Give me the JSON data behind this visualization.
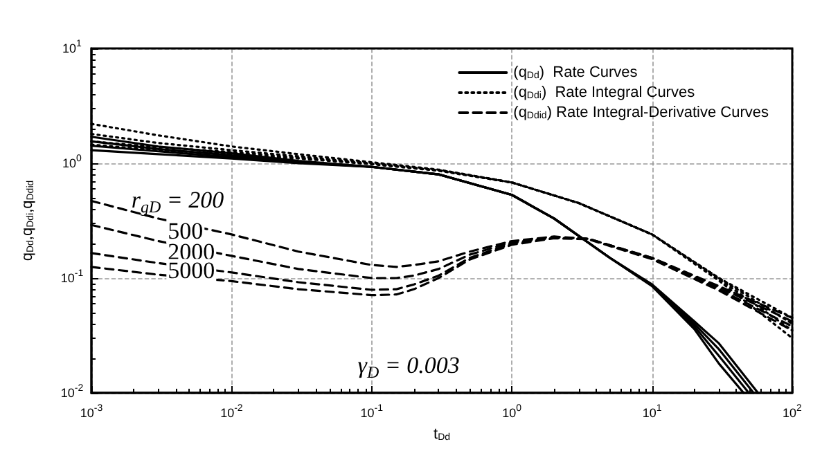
{
  "chart_data": {
    "type": "line",
    "xlabel": "t$_{Dd}$",
    "ylabel": "q$_{Dd}$,q$_{Ddi}$,q$_{Ddid}$",
    "log": "xy",
    "xlim": [
      0.001,
      100
    ],
    "ylim": [
      0.01,
      10
    ],
    "xticks": [
      {
        "value": 0.001,
        "label": "10$^{-3}$"
      },
      {
        "value": 0.01,
        "label": "10$^{-2}$"
      },
      {
        "value": 0.1,
        "label": "10$^{-1}$"
      },
      {
        "value": 1,
        "label": "10$^{0}$"
      },
      {
        "value": 10,
        "label": "10$^{1}$"
      },
      {
        "value": 100,
        "label": "10$^{2}$"
      }
    ],
    "yticks": [
      {
        "value": 0.01,
        "label": "10$^{-2}$"
      },
      {
        "value": 0.1,
        "label": "10$^{-1}$"
      },
      {
        "value": 1,
        "label": "10$^{0}$"
      },
      {
        "value": 10,
        "label": "10$^{1}$"
      }
    ],
    "grid": true,
    "legend": "top right",
    "marker": "none",
    "annotations": [
      "r$_{gD}$ = 200",
      "500",
      "2000",
      "5000",
      "γ$_{D}$ = 0.003"
    ],
    "series": [
      {
        "name": "(q$_{Dd}$)  Rate Curves",
        "color": "#000000",
        "line_style": "solid",
        "x": [
          0.001,
          0.003,
          0.01,
          0.03,
          0.1,
          0.3,
          1,
          2,
          5,
          10,
          20,
          30,
          45
        ],
        "values": [
          1.7,
          1.4,
          1.22,
          1.05,
          0.93,
          0.8,
          0.53,
          0.33,
          0.15,
          0.085,
          0.036,
          0.018,
          0.01
        ]
      },
      {
        "color": "#000000",
        "line_style": "solid",
        "x": [
          0.001,
          0.003,
          0.01,
          0.03,
          0.1,
          0.3,
          1,
          2,
          5,
          10,
          20,
          30,
          49
        ],
        "values": [
          1.55,
          1.33,
          1.17,
          1.03,
          0.93,
          0.8,
          0.53,
          0.33,
          0.15,
          0.086,
          0.038,
          0.021,
          0.01
        ]
      },
      {
        "color": "#000000",
        "line_style": "solid",
        "x": [
          0.001,
          0.003,
          0.01,
          0.03,
          0.1,
          0.3,
          1,
          2,
          5,
          10,
          20,
          30,
          53
        ],
        "values": [
          1.42,
          1.27,
          1.13,
          1.02,
          0.93,
          0.8,
          0.53,
          0.33,
          0.15,
          0.087,
          0.04,
          0.024,
          0.01
        ]
      },
      {
        "color": "#000000",
        "line_style": "solid",
        "x": [
          0.001,
          0.003,
          0.01,
          0.03,
          0.1,
          0.3,
          1,
          2,
          5,
          10,
          20,
          30,
          57
        ],
        "values": [
          1.3,
          1.2,
          1.1,
          1.0,
          0.93,
          0.8,
          0.53,
          0.33,
          0.15,
          0.088,
          0.042,
          0.027,
          0.01
        ]
      },
      {
        "name": "(q$_{Ddi}$)  Rate Integral Curves",
        "color": "#000000",
        "line_style": "dotted",
        "x": [
          0.001,
          0.003,
          0.01,
          0.03,
          0.1,
          0.3,
          1,
          3,
          10,
          30,
          100
        ],
        "values": [
          2.2,
          1.75,
          1.4,
          1.2,
          1.02,
          0.88,
          0.68,
          0.45,
          0.24,
          0.1,
          0.045
        ]
      },
      {
        "color": "#000000",
        "line_style": "dotted",
        "x": [
          0.001,
          0.003,
          0.01,
          0.03,
          0.1,
          0.3,
          1,
          3,
          10,
          30,
          100
        ],
        "values": [
          1.8,
          1.5,
          1.3,
          1.15,
          1.0,
          0.87,
          0.68,
          0.45,
          0.24,
          0.1,
          0.04
        ]
      },
      {
        "color": "#000000",
        "line_style": "dotted",
        "x": [
          0.001,
          0.003,
          0.01,
          0.03,
          0.1,
          0.3,
          1,
          3,
          10,
          30,
          100
        ],
        "values": [
          1.55,
          1.38,
          1.25,
          1.12,
          0.99,
          0.87,
          0.68,
          0.45,
          0.24,
          0.098,
          0.035
        ]
      },
      {
        "color": "#000000",
        "line_style": "dotted",
        "x": [
          0.001,
          0.003,
          0.01,
          0.03,
          0.1,
          0.3,
          1,
          3,
          10,
          30,
          100
        ],
        "values": [
          1.45,
          1.3,
          1.2,
          1.1,
          0.98,
          0.86,
          0.68,
          0.45,
          0.24,
          0.095,
          0.03
        ]
      },
      {
        "name": "(q$_{Ddid}$) Rate Integral-Derivative Curves",
        "color": "#000000",
        "line_style": "dashed",
        "x": [
          0.001,
          0.003,
          0.01,
          0.03,
          0.1,
          0.15,
          0.2,
          0.3,
          0.5,
          1,
          2,
          3.5,
          10,
          30,
          100
        ],
        "values": [
          0.47,
          0.33,
          0.24,
          0.17,
          0.13,
          0.125,
          0.13,
          0.14,
          0.17,
          0.21,
          0.23,
          0.22,
          0.15,
          0.085,
          0.045
        ]
      },
      {
        "color": "#000000",
        "line_style": "dashed",
        "x": [
          0.001,
          0.003,
          0.01,
          0.03,
          0.1,
          0.15,
          0.2,
          0.3,
          0.5,
          1,
          2,
          3.5,
          10,
          30,
          100
        ],
        "values": [
          0.29,
          0.21,
          0.156,
          0.12,
          0.1,
          0.1,
          0.105,
          0.12,
          0.16,
          0.205,
          0.225,
          0.22,
          0.15,
          0.083,
          0.042
        ]
      },
      {
        "color": "#000000",
        "line_style": "dashed",
        "x": [
          0.001,
          0.003,
          0.01,
          0.03,
          0.1,
          0.15,
          0.2,
          0.3,
          0.5,
          1,
          2,
          3.5,
          10,
          30,
          100
        ],
        "values": [
          0.165,
          0.135,
          0.112,
          0.092,
          0.079,
          0.08,
          0.088,
          0.105,
          0.15,
          0.2,
          0.225,
          0.22,
          0.148,
          0.08,
          0.038
        ]
      },
      {
        "color": "#000000",
        "line_style": "dashed",
        "x": [
          0.001,
          0.003,
          0.01,
          0.03,
          0.1,
          0.15,
          0.2,
          0.3,
          0.5,
          1,
          2,
          3.5,
          10,
          30,
          100
        ],
        "values": [
          0.125,
          0.107,
          0.094,
          0.08,
          0.071,
          0.072,
          0.08,
          0.1,
          0.145,
          0.195,
          0.222,
          0.218,
          0.146,
          0.078,
          0.035
        ]
      }
    ]
  }
}
